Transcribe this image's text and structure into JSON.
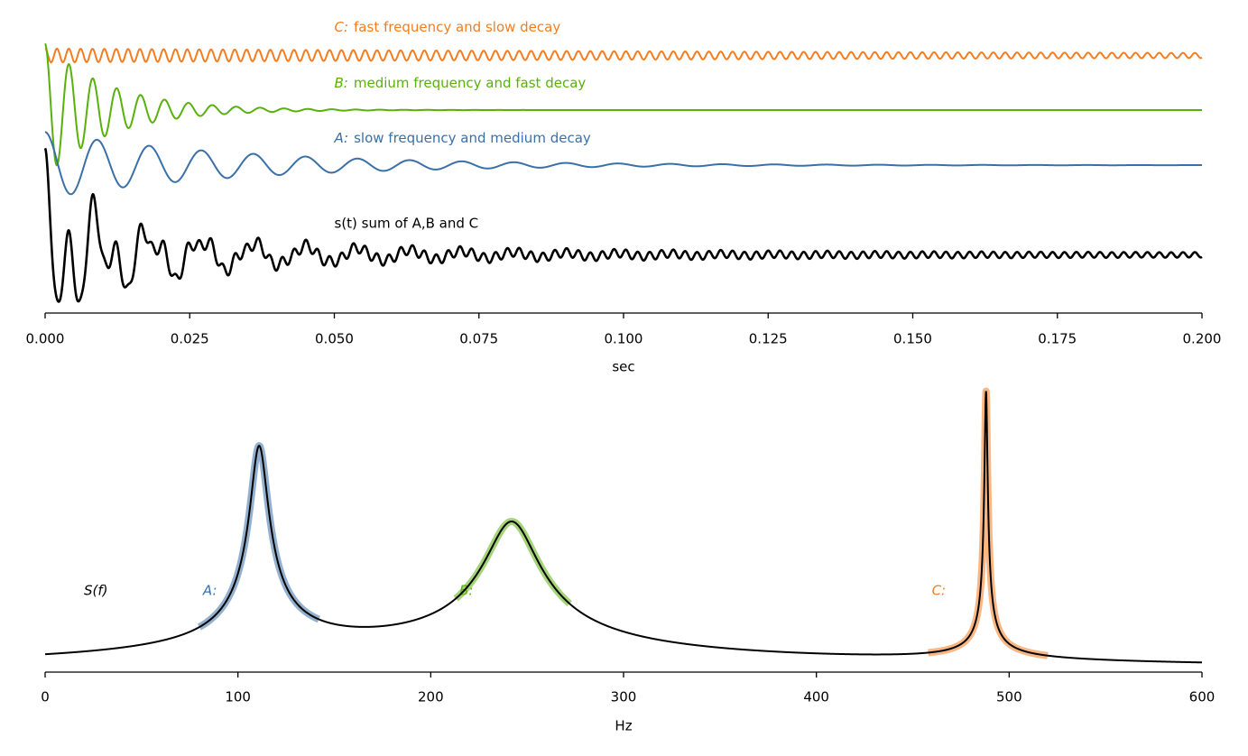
{
  "chart_data": [
    {
      "type": "damped-sum",
      "xlabel": "sec",
      "xlim": [
        0,
        0.2
      ],
      "xticks": [
        {
          "value": 0,
          "label": "0.000"
        },
        0.025,
        {
          "value": 0.05,
          "label": "0.050"
        },
        0.075,
        {
          "value": 0.1,
          "label": "0.100"
        },
        0.125,
        {
          "value": 0.15,
          "label": "0.150"
        },
        0.175,
        {
          "value": 0.2,
          "label": "0.200"
        }
      ],
      "ylim": [
        0,
        10
      ],
      "sum": {
        "label": "s(t) sum of A,B and C",
        "color": "#000000",
        "offset": 2.1
      },
      "series": [
        {
          "symbol": "C:",
          "name": "fast frequency and slow decay",
          "color": "#f57c1f",
          "frequency": 488,
          "decay": 5,
          "amplitude": 0.25,
          "offset": 9.3
        },
        {
          "symbol": "B:",
          "name": "medium frequency and fast decay",
          "color": "#58b10b",
          "frequency": 242,
          "decay": 90,
          "amplitude": 2.4,
          "offset": 7.33
        },
        {
          "symbol": "A:",
          "name": "slow frequency and medium decay",
          "color": "#3a70a8",
          "frequency": 111,
          "decay": 30,
          "amplitude": 1.2,
          "offset": 5.34
        }
      ]
    },
    {
      "type": "spectrum",
      "xlabel": "Hz",
      "label": "S(f)",
      "xlim": [
        0,
        600
      ],
      "xticks": [
        0,
        100,
        200,
        300,
        400,
        500,
        600
      ],
      "ylim": [
        0,
        10
      ],
      "peaks": [
        {
          "symbol": "A:",
          "color": "#3a70a8",
          "frequency": 111,
          "decay": 30,
          "height": 7.4,
          "band": [
            80,
            142
          ]
        },
        {
          "symbol": "B:",
          "color": "#58b10b",
          "frequency": 242,
          "decay": 90,
          "height": 5.0,
          "band": [
            213,
            272
          ]
        },
        {
          "symbol": "C:",
          "color": "#f57c1f",
          "frequency": 488,
          "decay": 5,
          "height": 9.5,
          "band": [
            458,
            520
          ]
        }
      ]
    }
  ]
}
